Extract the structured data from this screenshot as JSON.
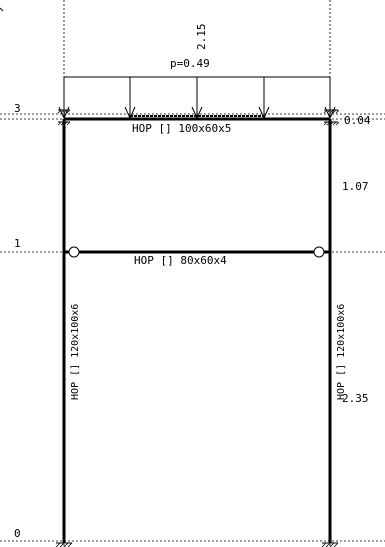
{
  "load": {
    "label": "p=0.49",
    "span_dim": "2.15"
  },
  "levels": {
    "top": "3",
    "middle": "1",
    "bottom": "0"
  },
  "right_dims": {
    "top_small": "0.04",
    "upper": "1.07",
    "lower": "2.35"
  },
  "members": {
    "top_beam": "HOP [] 100x60x5",
    "mid_beam": "HOP [] 80x60x4",
    "left_column": "HOP [] 120x100x6",
    "right_column": "HOP [] 120x100x6"
  }
}
